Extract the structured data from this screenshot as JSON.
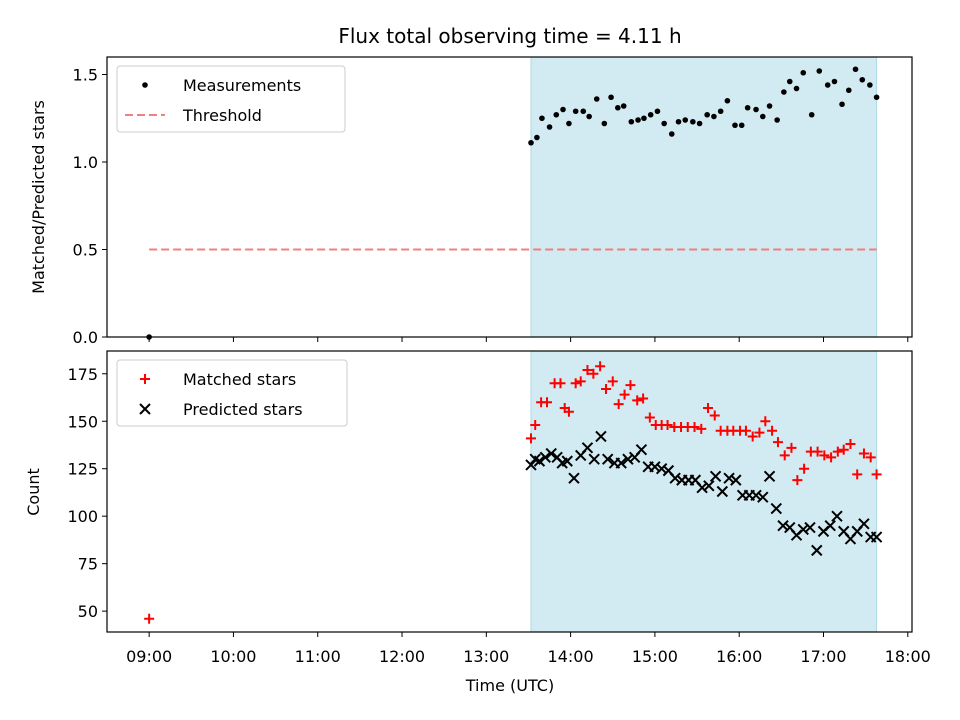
{
  "chart_data": {
    "title": "Flux total observing time = 4.11 h",
    "xlabel": "Time (UTC)",
    "x_ticks": [
      "09:00",
      "10:00",
      "11:00",
      "12:00",
      "13:00",
      "14:00",
      "15:00",
      "16:00",
      "17:00",
      "18:00"
    ],
    "xlim_hours": [
      8.5,
      18.05
    ],
    "shaded_interval_hours": [
      13.53,
      17.63
    ],
    "shade_color": "#add8e6",
    "panels": [
      {
        "type": "scatter",
        "ylabel": "Matched/Predicted stars",
        "ylim": [
          0,
          1.6
        ],
        "y_ticks": [
          "0.0",
          "0.5",
          "1.0",
          "1.5"
        ],
        "legend_position": "top-left",
        "series": [
          {
            "name": "Measurements",
            "marker": "dot",
            "color": "#000000",
            "x": [
              9.0,
              13.53,
              13.6,
              13.66,
              13.75,
              13.83,
              13.91,
              13.98,
              14.06,
              14.15,
              14.22,
              14.31,
              14.4,
              14.48,
              14.56,
              14.63,
              14.72,
              14.8,
              14.87,
              14.95,
              15.03,
              15.11,
              15.2,
              15.28,
              15.36,
              15.45,
              15.53,
              15.62,
              15.7,
              15.78,
              15.86,
              15.95,
              16.03,
              16.1,
              16.2,
              16.28,
              16.36,
              16.45,
              16.53,
              16.6,
              16.68,
              16.76,
              16.86,
              16.95,
              17.05,
              17.13,
              17.22,
              17.3,
              17.38,
              17.46,
              17.55,
              17.63
            ],
            "y": [
              0.0,
              1.11,
              1.14,
              1.25,
              1.2,
              1.27,
              1.3,
              1.22,
              1.29,
              1.29,
              1.26,
              1.36,
              1.22,
              1.37,
              1.31,
              1.32,
              1.23,
              1.24,
              1.25,
              1.27,
              1.29,
              1.22,
              1.16,
              1.23,
              1.24,
              1.23,
              1.22,
              1.27,
              1.26,
              1.29,
              1.35,
              1.21,
              1.21,
              1.31,
              1.3,
              1.26,
              1.32,
              1.24,
              1.4,
              1.46,
              1.42,
              1.51,
              1.27,
              1.52,
              1.44,
              1.46,
              1.33,
              1.41,
              1.53,
              1.47,
              1.44,
              1.37
            ]
          },
          {
            "name": "Threshold",
            "marker": "dashed-line",
            "color": "#f08080",
            "x": [
              9.0,
              17.63
            ],
            "y": [
              0.5,
              0.5
            ]
          }
        ]
      },
      {
        "type": "scatter",
        "ylabel": "Count",
        "ylim": [
          39,
          187
        ],
        "y_ticks": [
          "50",
          "75",
          "100",
          "125",
          "150",
          "175"
        ],
        "legend_position": "top-left",
        "series": [
          {
            "name": "Matched stars",
            "marker": "plus",
            "color": "#ff0000",
            "x": [
              9.0,
              13.53,
              13.58,
              13.65,
              13.72,
              13.81,
              13.88,
              13.93,
              13.98,
              14.06,
              14.12,
              14.2,
              14.27,
              14.35,
              14.42,
              14.5,
              14.57,
              14.64,
              14.71,
              14.79,
              14.86,
              14.94,
              15.01,
              15.08,
              15.15,
              15.23,
              15.31,
              15.39,
              15.47,
              15.55,
              15.63,
              15.71,
              15.78,
              15.86,
              15.93,
              16.01,
              16.08,
              16.16,
              16.24,
              16.31,
              16.39,
              16.46,
              16.54,
              16.62,
              16.69,
              16.77,
              16.85,
              16.93,
              17.01,
              17.09,
              17.17,
              17.24,
              17.32,
              17.4,
              17.48,
              17.56,
              17.63
            ],
            "y": [
              46,
              141,
              148,
              160,
              160,
              170,
              170,
              157,
              155,
              170,
              171,
              177,
              175,
              179,
              167,
              171,
              159,
              164,
              169,
              161,
              162,
              152,
              148,
              148,
              148,
              147,
              147,
              147,
              147,
              146,
              157,
              153,
              145,
              145,
              145,
              145,
              145,
              142,
              144,
              150,
              145,
              139,
              132,
              136,
              119,
              125,
              134,
              134,
              132,
              131,
              134,
              135,
              138,
              122,
              133,
              131,
              122
            ]
          },
          {
            "name": "Predicted stars",
            "marker": "x",
            "color": "#000000",
            "x": [
              13.53,
              13.58,
              13.63,
              13.7,
              13.77,
              13.84,
              13.9,
              13.96,
              14.04,
              14.12,
              14.2,
              14.28,
              14.36,
              14.44,
              14.52,
              14.6,
              14.68,
              14.76,
              14.84,
              14.92,
              15.0,
              15.08,
              15.16,
              15.24,
              15.32,
              15.4,
              15.48,
              15.56,
              15.64,
              15.72,
              15.8,
              15.88,
              15.96,
              16.04,
              16.12,
              16.2,
              16.28,
              16.36,
              16.44,
              16.52,
              16.6,
              16.68,
              16.76,
              16.84,
              16.92,
              17.0,
              17.08,
              17.16,
              17.24,
              17.32,
              17.4,
              17.48,
              17.56,
              17.63
            ],
            "y": [
              127,
              130,
              129,
              131,
              133,
              131,
              128,
              129,
              120,
              132,
              136,
              130,
              142,
              130,
              128,
              128,
              130,
              131,
              135,
              126,
              126,
              125,
              124,
              120,
              119,
              119,
              119,
              115,
              116,
              121,
              113,
              120,
              119,
              111,
              111,
              111,
              110,
              121,
              104,
              95,
              94,
              90,
              93,
              94,
              82,
              92,
              95,
              100,
              92,
              88,
              92,
              96,
              89,
              89
            ]
          }
        ]
      }
    ]
  }
}
